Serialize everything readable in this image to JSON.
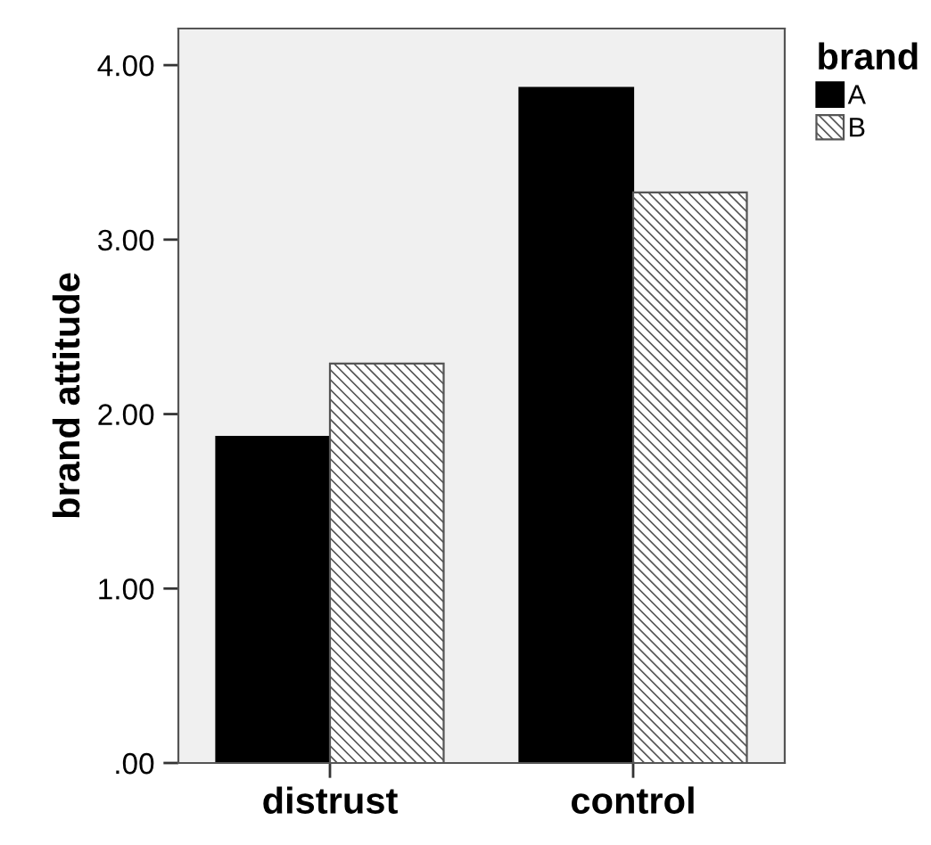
{
  "chart_data": {
    "type": "bar",
    "ylabel": "brand attitude",
    "legend_title": "brand",
    "categories": [
      "distrust",
      "control"
    ],
    "series": [
      {
        "name": "A",
        "color": "#000000",
        "values": [
          1.87,
          3.87
        ]
      },
      {
        "name": "B",
        "color": "#555555",
        "values": [
          2.29,
          3.27
        ]
      }
    ],
    "ylim": [
      0,
      4.21
    ],
    "yticks": [
      {
        "value": 0,
        "label": ".00"
      },
      {
        "value": 1,
        "label": "1.00"
      },
      {
        "value": 2,
        "label": "2.00"
      },
      {
        "value": 3,
        "label": "3.00"
      },
      {
        "value": 4,
        "label": "4.00"
      }
    ],
    "grid": false,
    "legend": "top right"
  }
}
